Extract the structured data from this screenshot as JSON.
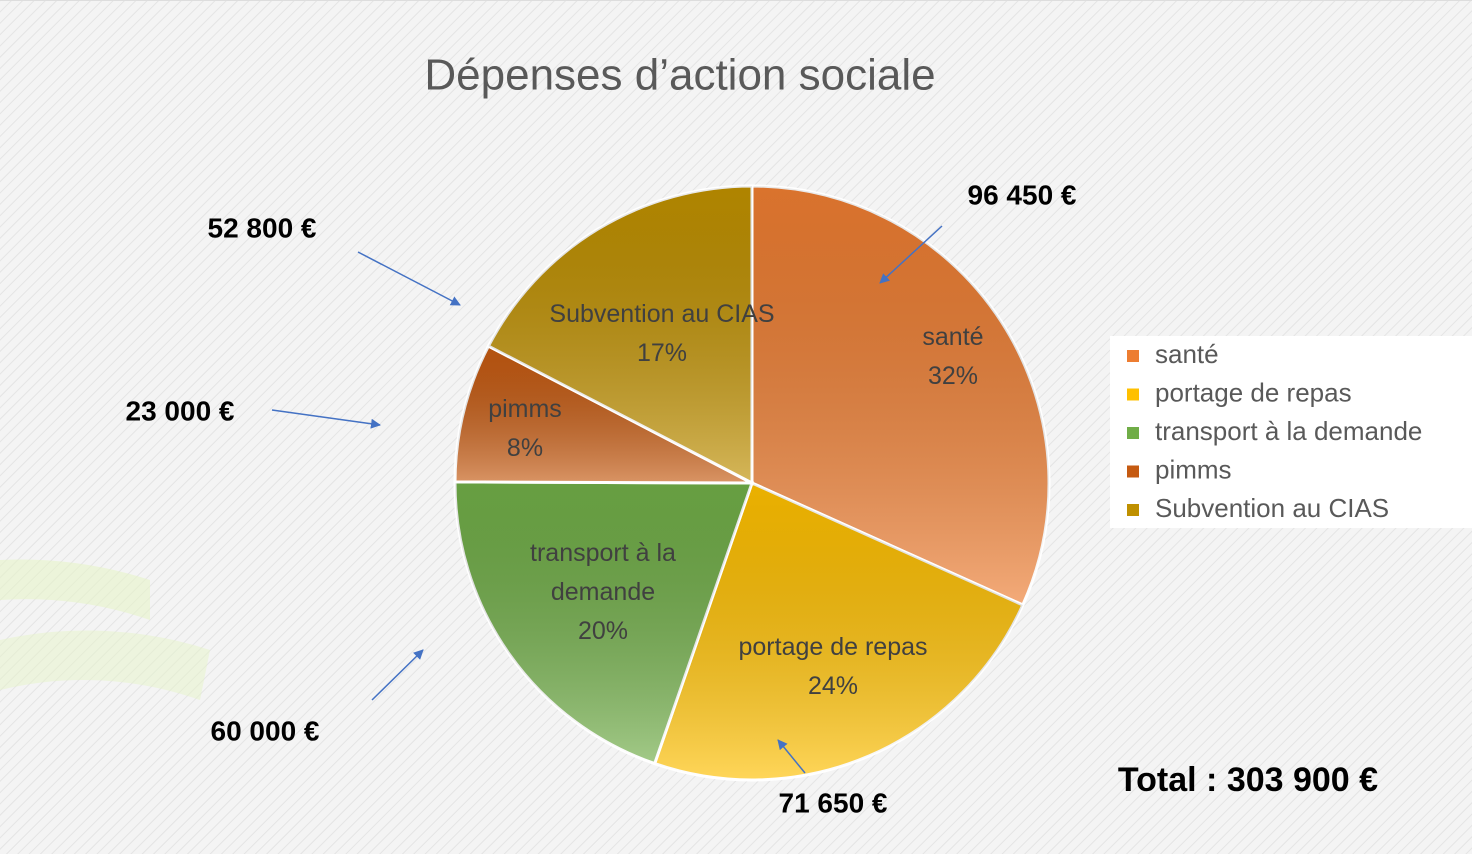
{
  "chart_data": {
    "type": "pie",
    "title": "Dépenses d’action sociale",
    "series": [
      {
        "name": "santé",
        "color": "#ed7d31"
      },
      {
        "name": "portage de repas",
        "color": "#ffc000"
      },
      {
        "name": "transport à la demande",
        "color": "#70ad47"
      },
      {
        "name": "pimms",
        "color": "#c55a11"
      },
      {
        "name": "Subvention au CIAS",
        "color": "#bf9000"
      }
    ],
    "categories": [
      "santé",
      "portage de repas",
      "transport à la demande",
      "pimms",
      "Subvention au CIAS"
    ],
    "values": [
      96450,
      71650,
      60000,
      23000,
      52800
    ],
    "value_labels": [
      "96 450 €",
      "71 650 €",
      "60 000 €",
      "23 000 €",
      "52 800 €"
    ],
    "percent_labels": [
      "32%",
      "24%",
      "20%",
      "8%",
      "17%"
    ],
    "legend": "right",
    "total_label": "Total : 303 900 €"
  }
}
